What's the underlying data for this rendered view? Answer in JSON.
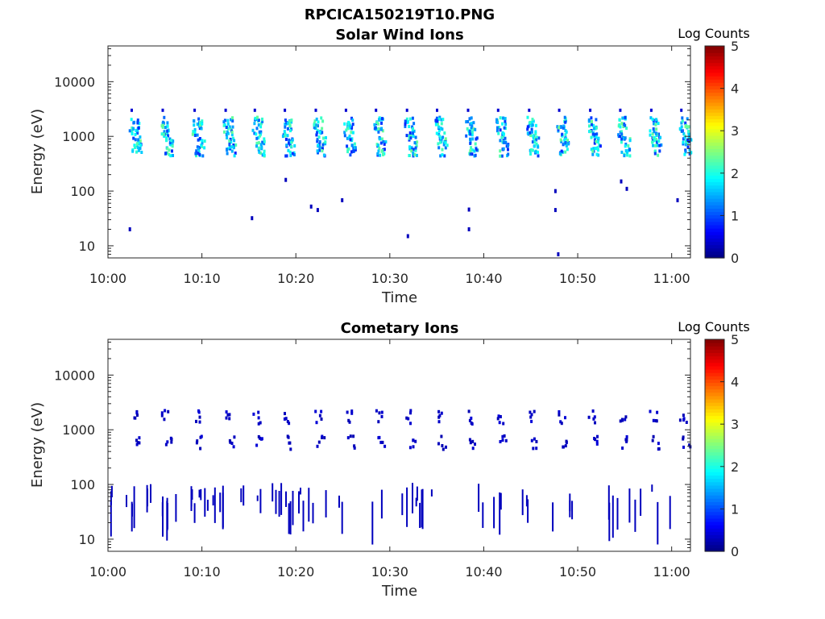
{
  "figure_title": "RPCICA150219T10.PNG",
  "chart_data": [
    {
      "type": "heatmap",
      "title": "Solar Wind Ions",
      "xlabel": "Time",
      "ylabel": "Energy (eV)",
      "y_scale": "log",
      "ylim": [
        6,
        45000
      ],
      "xlim": [
        "10:00",
        "11:02"
      ],
      "x_ticks": [
        "10:00",
        "10:10",
        "10:20",
        "10:30",
        "10:40",
        "10:50",
        "11:00"
      ],
      "y_ticks": [
        "10",
        "100",
        "1000",
        "10000"
      ],
      "colorbar": {
        "label": "Log Counts",
        "min": 0,
        "max": 5,
        "ticks": [
          "0",
          "1",
          "2",
          "3",
          "4",
          "5"
        ],
        "colormap": "jet"
      },
      "bursts_minutes": [
        2.5,
        5.8,
        9.2,
        12.5,
        15.6,
        18.8,
        22.1,
        25.3,
        28.5,
        31.8,
        35.0,
        38.3,
        41.5,
        44.8,
        48.0,
        51.3,
        54.5,
        57.8,
        61.0
      ],
      "burst_energies_eV": [
        1500,
        650
      ],
      "burst_peak_log_counts": 2.2,
      "isolated_points": [
        {
          "t": 2.2,
          "e": 20,
          "v": 0.3
        },
        {
          "t": 15.2,
          "e": 32,
          "v": 0.3
        },
        {
          "t": 18.8,
          "e": 160,
          "v": 0.3
        },
        {
          "t": 21.5,
          "e": 52,
          "v": 0.3
        },
        {
          "t": 22.2,
          "e": 45,
          "v": 0.3
        },
        {
          "t": 24.8,
          "e": 68,
          "v": 0.3
        },
        {
          "t": 31.8,
          "e": 15,
          "v": 0.3
        },
        {
          "t": 38.3,
          "e": 46,
          "v": 0.3
        },
        {
          "t": 38.3,
          "e": 20,
          "v": 0.3
        },
        {
          "t": 47.5,
          "e": 100,
          "v": 0.3
        },
        {
          "t": 47.5,
          "e": 45,
          "v": 0.3
        },
        {
          "t": 47.8,
          "e": 7,
          "v": 0.3
        },
        {
          "t": 54.5,
          "e": 150,
          "v": 0.3
        },
        {
          "t": 55.1,
          "e": 110,
          "v": 0.3
        },
        {
          "t": 60.5,
          "e": 68,
          "v": 0.3
        }
      ]
    },
    {
      "type": "heatmap",
      "title": "Cometary Ions",
      "xlabel": "Time",
      "ylabel": "Energy (eV)",
      "y_scale": "log",
      "ylim": [
        6,
        45000
      ],
      "xlim": [
        "10:00",
        "11:02"
      ],
      "x_ticks": [
        "10:00",
        "10:10",
        "10:20",
        "10:30",
        "10:40",
        "10:50",
        "11:00"
      ],
      "y_ticks": [
        "10",
        "100",
        "1000",
        "10000"
      ],
      "colorbar": {
        "label": "Log Counts",
        "min": 0,
        "max": 5,
        "ticks": [
          "0",
          "1",
          "2",
          "3",
          "4",
          "5"
        ],
        "colormap": "jet"
      },
      "bursts_minutes": [
        2.5,
        5.8,
        9.2,
        12.5,
        15.6,
        18.8,
        22.1,
        25.3,
        28.5,
        31.8,
        35.0,
        38.3,
        41.5,
        44.8,
        48.0,
        51.3,
        54.5,
        57.8,
        61.0
      ],
      "burst_energies_eV": [
        1700,
        580
      ],
      "burst_peak_log_counts": 0.4,
      "low_energy_activity_minutes": [
        0,
        1,
        2,
        4,
        5,
        6,
        7,
        8,
        9,
        10,
        11,
        12,
        14,
        15,
        16,
        17,
        18,
        19,
        20,
        21,
        23,
        24,
        28,
        29,
        31,
        32,
        33,
        34,
        39,
        41,
        44,
        47,
        49,
        53,
        54,
        55,
        56,
        57,
        58,
        59
      ],
      "low_energy_range_eV": [
        8,
        110
      ],
      "low_energy_log_counts": 0.3
    }
  ]
}
